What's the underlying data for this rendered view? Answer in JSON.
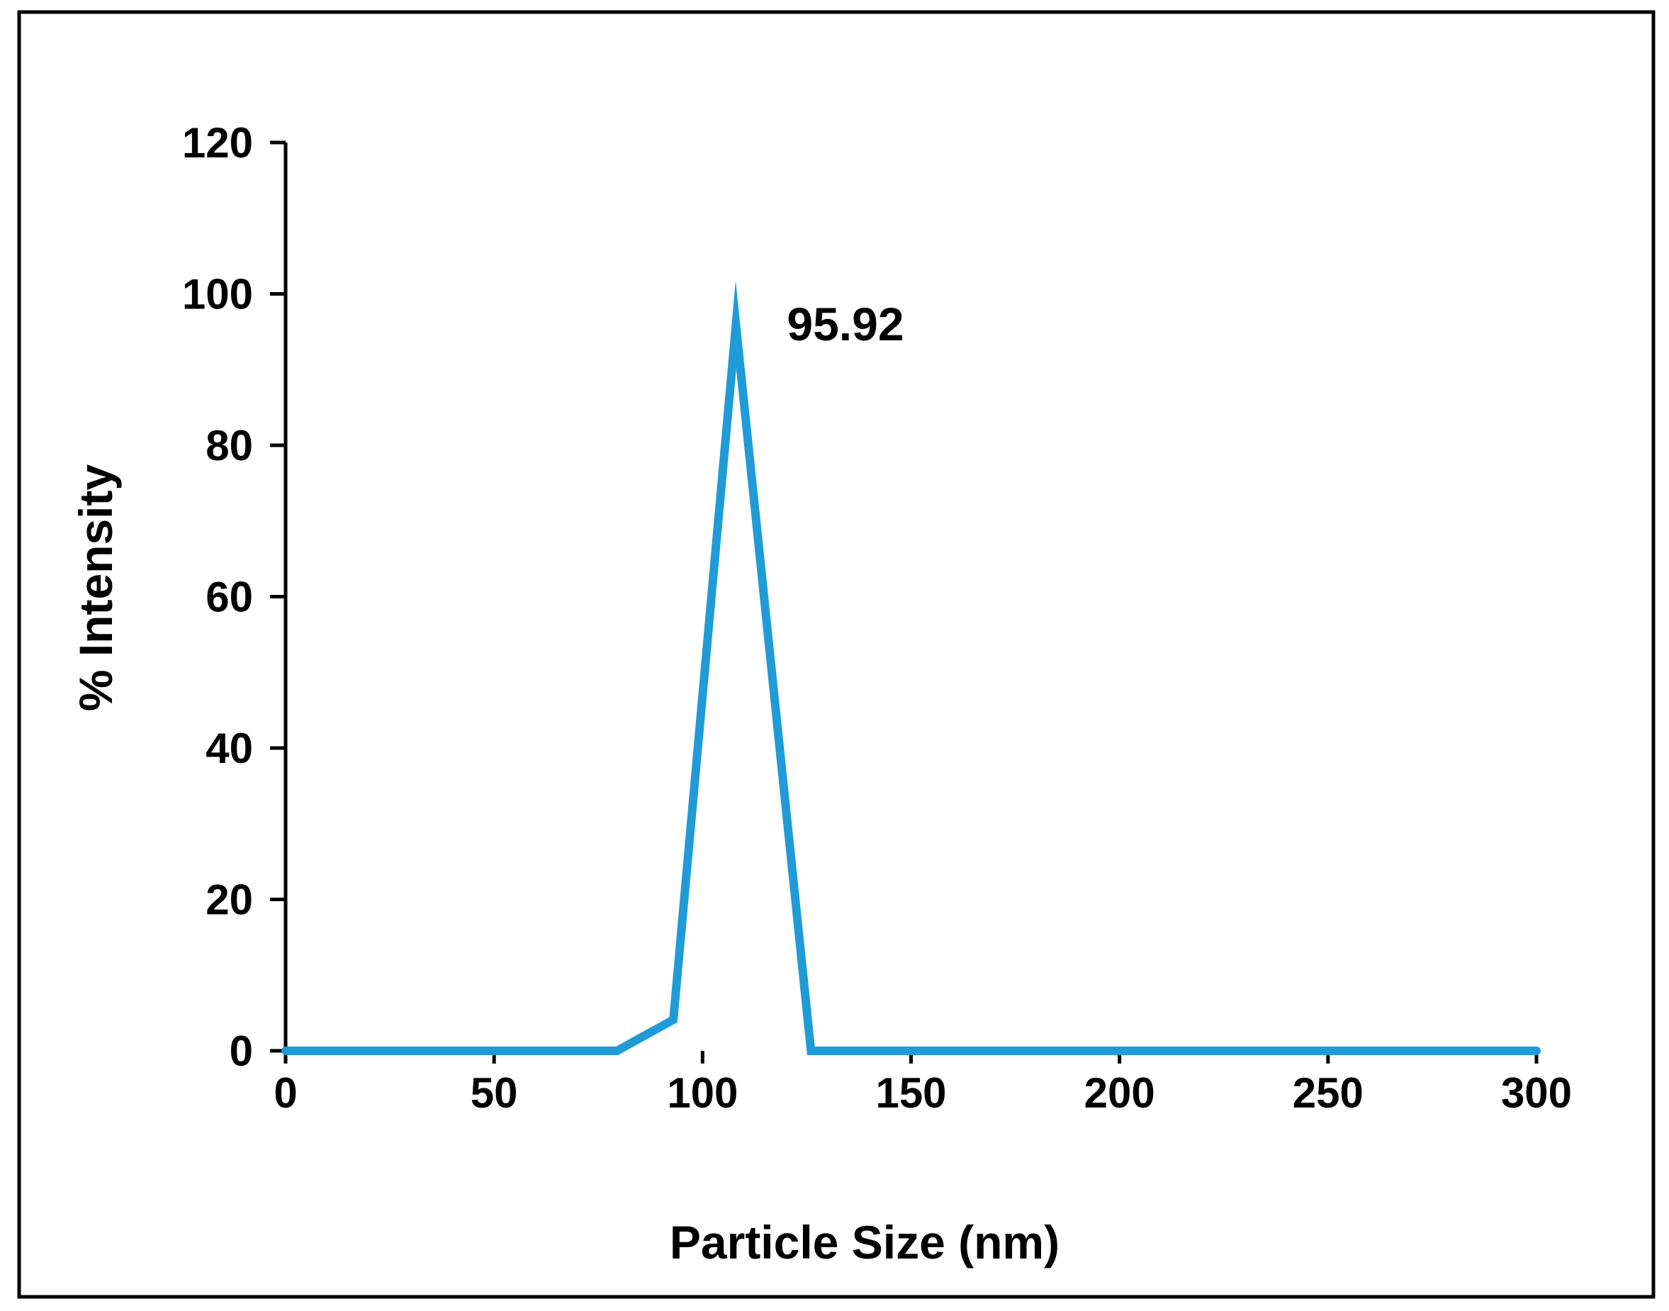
{
  "chart_data": {
    "type": "line",
    "title": "",
    "xlabel": "Particle Size (nm)",
    "ylabel": "% Intensity",
    "xlim": [
      0,
      300
    ],
    "ylim": [
      0,
      120
    ],
    "x_ticks": [
      0,
      50,
      100,
      150,
      200,
      250,
      300
    ],
    "y_ticks": [
      0,
      20,
      40,
      60,
      80,
      100,
      120
    ],
    "grid": false,
    "legend": "none",
    "series": [
      {
        "color": "#1f9bd8",
        "x": [
          0,
          79.5,
          93,
          108,
          126,
          300
        ],
        "y": [
          0,
          0,
          4.1,
          95.92,
          0,
          0
        ]
      }
    ],
    "annotations": [
      {
        "text": "95.92",
        "x": 108,
        "y": 95.92
      }
    ]
  }
}
